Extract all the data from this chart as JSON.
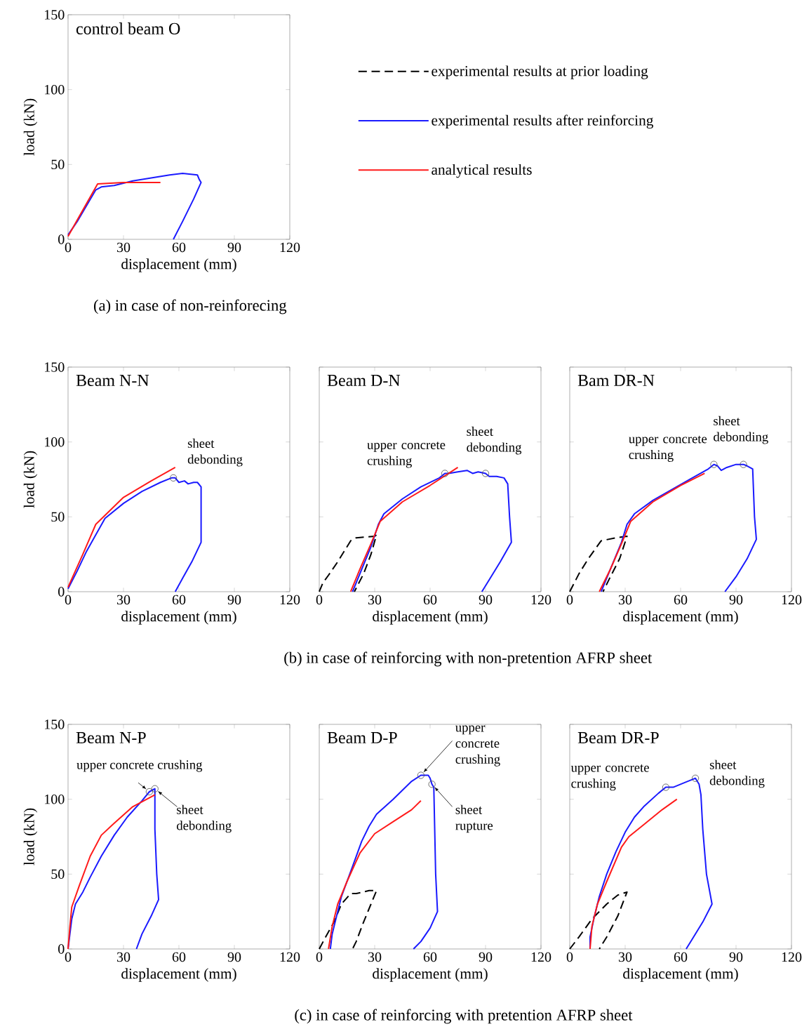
{
  "chart_data": [
    {
      "type": "line",
      "title": "control beam O",
      "xlabel": "displacement (mm)",
      "ylabel": "load (kN)",
      "xlim": [
        0,
        120
      ],
      "xticks": [
        0,
        30,
        60,
        90,
        120
      ],
      "ylim": [
        0,
        150
      ],
      "yticks": [
        0,
        50,
        100,
        150
      ],
      "series": [
        {
          "color": "#1a1aff",
          "line_style": "solid",
          "x": [
            0,
            5,
            15,
            18,
            25,
            35,
            45,
            55,
            62,
            70,
            71,
            72,
            68,
            62,
            57
          ],
          "values": [
            3,
            12,
            33,
            35,
            36,
            39,
            41,
            43,
            44,
            43,
            40,
            38,
            27,
            12,
            0
          ]
        },
        {
          "color": "#ff1a1a",
          "line_style": "solid",
          "x": [
            0,
            5,
            16,
            30,
            50
          ],
          "values": [
            2,
            13,
            37,
            38,
            38
          ]
        }
      ],
      "annotations": [
        "(a) in case of non-reinforecing"
      ]
    },
    {
      "type": "line",
      "title": "Beam N-N",
      "xlabel": "displacement (mm)",
      "ylabel": "load (kN)",
      "xlim": [
        0,
        120
      ],
      "xticks": [
        0,
        30,
        60,
        90,
        120
      ],
      "ylim": [
        0,
        150
      ],
      "yticks": [
        0,
        50,
        100,
        150
      ],
      "series": [
        {
          "color": "#1a1aff",
          "line_style": "solid",
          "x": [
            0,
            5,
            10,
            20,
            30,
            40,
            50,
            56,
            58,
            60,
            63,
            65,
            68,
            70,
            72,
            72,
            67,
            62,
            58
          ],
          "values": [
            2,
            14,
            27,
            49,
            59,
            67,
            73,
            76,
            76,
            73,
            74,
            72,
            73,
            73,
            70,
            33,
            20,
            9,
            0
          ]
        },
        {
          "color": "#ff1a1a",
          "line_style": "solid",
          "x": [
            0,
            8,
            15,
            30,
            45,
            58
          ],
          "values": [
            3,
            25,
            45,
            63,
            74,
            83
          ]
        }
      ],
      "annotations": [
        {
          "text": "sheet debonding",
          "x": 57,
          "y": 76
        }
      ]
    },
    {
      "type": "line",
      "title": "Beam D-N",
      "xlabel": "displacement (mm)",
      "xlim": [
        0,
        120
      ],
      "xticks": [
        0,
        30,
        60,
        90,
        120
      ],
      "ylim": [
        0,
        150
      ],
      "yticks": [
        0,
        50,
        100,
        150
      ],
      "tick_labels": "x",
      "legend": "top",
      "series": [
        {
          "name": "experimental results at prior loading",
          "color": "#000000",
          "line_style": "dashed",
          "x": [
            0,
            2,
            5,
            10,
            17,
            20,
            30,
            31,
            28,
            24,
            19
          ],
          "values": [
            0,
            6,
            11,
            20,
            34,
            36,
            37,
            38,
            25,
            12,
            0
          ]
        },
        {
          "name": "experimental results after reinforcing",
          "color": "#1a1aff",
          "line_style": "solid",
          "x": [
            18,
            22,
            28,
            32,
            35,
            45,
            55,
            65,
            68,
            70,
            75,
            80,
            83,
            86,
            90,
            92,
            96,
            100,
            102,
            103,
            104,
            98,
            92,
            88
          ],
          "values": [
            0,
            12,
            30,
            45,
            52,
            62,
            70,
            76,
            79,
            79,
            80,
            81,
            79,
            80,
            79,
            77,
            77,
            76,
            72,
            50,
            33,
            20,
            8,
            0
          ]
        },
        {
          "name": "analytical results",
          "color": "#ff1a1a",
          "line_style": "solid",
          "x": [
            17,
            22,
            28,
            33,
            45,
            60,
            75
          ],
          "values": [
            0,
            15,
            32,
            47,
            60,
            71,
            83
          ]
        }
      ],
      "annotations": [
        {
          "text": "upper concrete crushing",
          "x": 68,
          "y": 79
        },
        {
          "text": "sheet debonding",
          "x": 90,
          "y": 79
        },
        "(b) in case of reinforcing with non-pretention AFRP sheet"
      ]
    },
    {
      "type": "line",
      "title": "Bam DR-N",
      "xlabel": "displacement (mm)",
      "xlim": [
        0,
        120
      ],
      "xticks": [
        0,
        30,
        60,
        90,
        120
      ],
      "ylim": [
        0,
        150
      ],
      "yticks": [
        0,
        50,
        100,
        150
      ],
      "tick_labels": "x",
      "series": [
        {
          "color": "#000000",
          "line_style": "dashed",
          "x": [
            0,
            5,
            10,
            17,
            25,
            31,
            27,
            22,
            18
          ],
          "values": [
            0,
            12,
            22,
            34,
            36,
            37,
            22,
            10,
            0
          ]
        },
        {
          "color": "#1a1aff",
          "line_style": "solid",
          "x": [
            17,
            22,
            28,
            31,
            35,
            45,
            55,
            65,
            75,
            78,
            80,
            82,
            85,
            90,
            94,
            96,
            99,
            100,
            101,
            96,
            90,
            84
          ],
          "values": [
            0,
            15,
            33,
            45,
            52,
            61,
            68,
            75,
            82,
            85,
            84,
            81,
            83,
            85,
            85,
            84,
            82,
            50,
            35,
            22,
            10,
            0
          ]
        },
        {
          "color": "#ff1a1a",
          "line_style": "solid",
          "x": [
            16,
            22,
            28,
            33,
            45,
            60,
            73
          ],
          "values": [
            0,
            15,
            32,
            47,
            60,
            71,
            79
          ]
        }
      ],
      "annotations": [
        {
          "text": "upper concrete crushing",
          "x": 78,
          "y": 85
        },
        {
          "text": "sheet debonding",
          "x": 94,
          "y": 85
        }
      ]
    },
    {
      "type": "line",
      "title": "Beam N-P",
      "xlabel": "displacement (mm)",
      "ylabel": "load (kN)",
      "xlim": [
        0,
        120
      ],
      "xticks": [
        0,
        30,
        60,
        90,
        120
      ],
      "ylim": [
        0,
        150
      ],
      "yticks": [
        0,
        50,
        100,
        150
      ],
      "series": [
        {
          "color": "#1a1aff",
          "line_style": "solid",
          "x": [
            0,
            1,
            2,
            4,
            8,
            12,
            18,
            25,
            32,
            40,
            44,
            47,
            47,
            48,
            49,
            45,
            40,
            37
          ],
          "values": [
            0,
            10,
            20,
            30,
            38,
            48,
            62,
            76,
            88,
            99,
            105,
            107,
            80,
            50,
            33,
            22,
            10,
            0
          ]
        },
        {
          "color": "#ff1a1a",
          "line_style": "solid",
          "x": [
            0,
            1,
            2,
            6,
            12,
            18,
            25,
            35,
            47
          ],
          "values": [
            0,
            15,
            28,
            42,
            62,
            76,
            84,
            95,
            103
          ]
        }
      ],
      "annotations": [
        {
          "text": "upper concrete crushing",
          "x": 44,
          "y": 105
        },
        {
          "text": "sheet debonding",
          "x": 47,
          "y": 107
        }
      ]
    },
    {
      "type": "line",
      "title": "Beam D-P",
      "xlabel": "displacement (mm)",
      "xlim": [
        0,
        120
      ],
      "xticks": [
        0,
        30,
        60,
        90,
        120
      ],
      "ylim": [
        0,
        150
      ],
      "yticks": [
        0,
        50,
        100,
        150
      ],
      "tick_labels": "x",
      "series": [
        {
          "color": "#000000",
          "line_style": "dashed",
          "x": [
            0,
            3,
            8,
            12,
            17,
            20,
            27,
            31,
            28,
            24,
            20,
            18
          ],
          "values": [
            0,
            7,
            18,
            30,
            37,
            37,
            39,
            39,
            30,
            18,
            5,
            0
          ]
        },
        {
          "color": "#1a1aff",
          "line_style": "solid",
          "x": [
            6,
            7,
            9,
            12,
            18,
            23,
            27,
            31,
            40,
            50,
            55,
            59,
            60,
            61,
            62,
            63,
            64,
            60,
            55,
            51
          ],
          "values": [
            0,
            10,
            20,
            35,
            55,
            72,
            82,
            90,
            100,
            112,
            116,
            116,
            114,
            110,
            108,
            50,
            25,
            14,
            5,
            0
          ]
        },
        {
          "color": "#ff1a1a",
          "line_style": "solid",
          "x": [
            5,
            7,
            10,
            15,
            22,
            30,
            40,
            50,
            55
          ],
          "values": [
            0,
            15,
            30,
            45,
            64,
            77,
            85,
            93,
            99
          ]
        }
      ],
      "annotations": [
        {
          "text": "upper concrete crushing",
          "x": 55,
          "y": 116
        },
        {
          "text": "sheet rupture",
          "x": 61,
          "y": 110
        },
        "(c) in case of reinforcing with pretention AFRP sheet"
      ]
    },
    {
      "type": "line",
      "title": "Beam DR-P",
      "xlabel": "displacement (mm)",
      "xlim": [
        0,
        120
      ],
      "xticks": [
        0,
        30,
        60,
        90,
        120
      ],
      "ylim": [
        0,
        150
      ],
      "yticks": [
        0,
        50,
        100,
        150
      ],
      "tick_labels": "x",
      "series": [
        {
          "color": "#000000",
          "line_style": "dashed",
          "x": [
            0,
            5,
            12,
            20,
            26,
            31,
            26,
            20,
            16
          ],
          "values": [
            0,
            8,
            20,
            30,
            36,
            38,
            22,
            8,
            0
          ]
        },
        {
          "color": "#1a1aff",
          "line_style": "solid",
          "x": [
            11,
            11,
            13,
            16,
            20,
            25,
            30,
            35,
            40,
            48,
            52,
            56,
            62,
            66,
            68,
            70,
            71,
            72,
            74,
            77,
            72,
            66,
            63
          ],
          "values": [
            0,
            8,
            20,
            35,
            50,
            65,
            78,
            88,
            95,
            104,
            108,
            108,
            111,
            113,
            114,
            110,
            103,
            80,
            50,
            30,
            18,
            6,
            0
          ]
        },
        {
          "color": "#ff1a1a",
          "line_style": "solid",
          "x": [
            11,
            12,
            15,
            20,
            28,
            32,
            40,
            50,
            58
          ],
          "values": [
            0,
            15,
            30,
            45,
            68,
            75,
            83,
            93,
            100
          ]
        }
      ],
      "annotations": [
        {
          "text": "upper concrete crushing",
          "x": 52,
          "y": 108
        },
        {
          "text": "sheet debonding",
          "x": 68,
          "y": 114
        }
      ]
    }
  ]
}
